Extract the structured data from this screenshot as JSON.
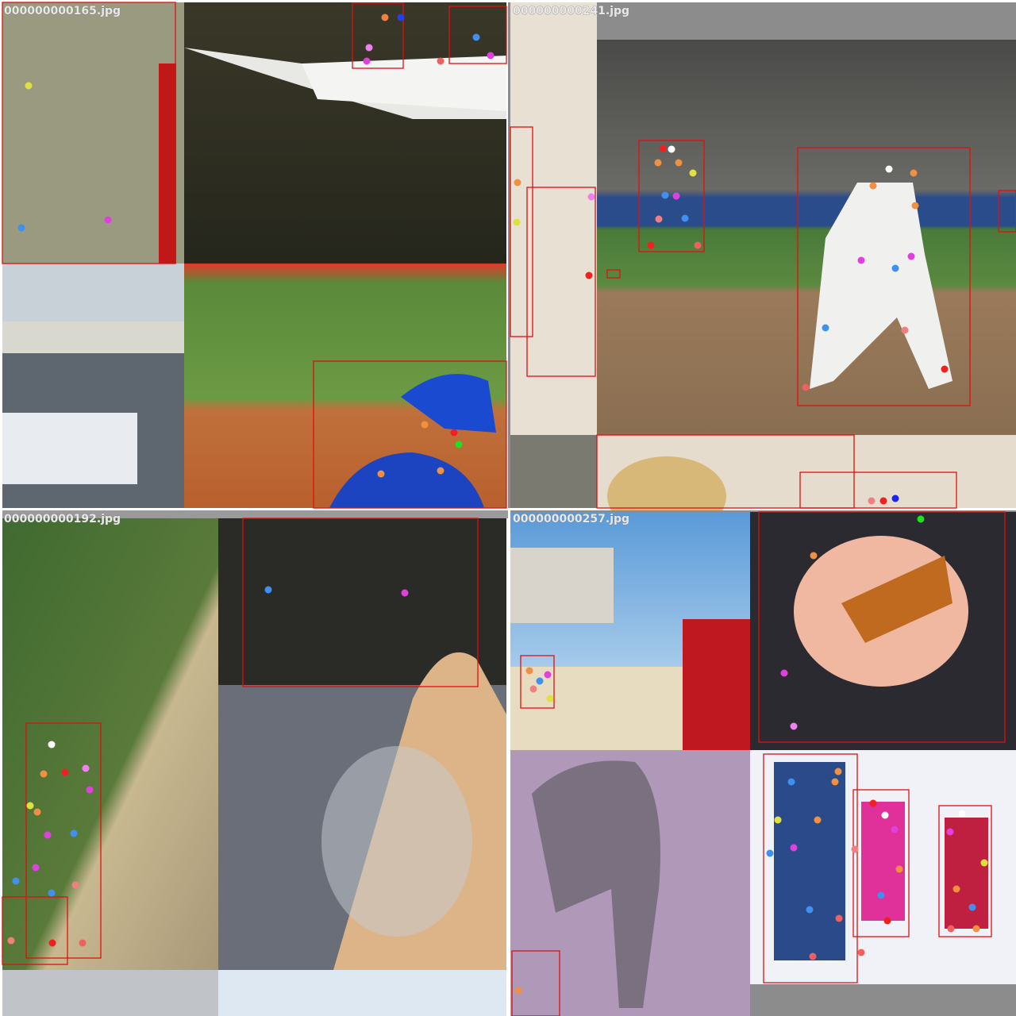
{
  "tiles": [
    {
      "filename": "000000000165.jpg"
    },
    {
      "filename": "000000000241.jpg"
    },
    {
      "filename": "000000000192.jpg"
    },
    {
      "filename": "000000000257.jpg"
    }
  ]
}
